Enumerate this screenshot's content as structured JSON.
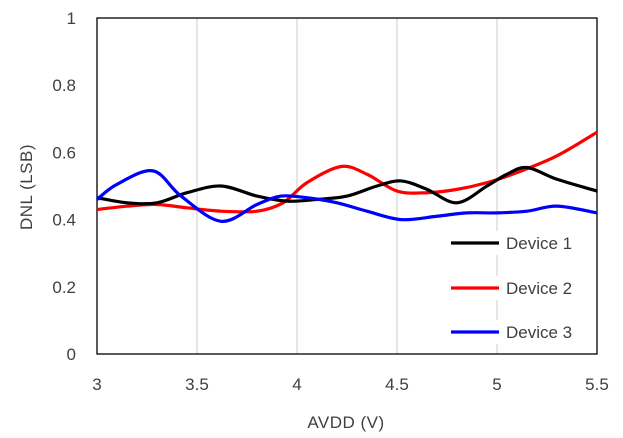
{
  "chart_data": {
    "type": "line",
    "xlabel": "AVDD (V)",
    "ylabel": "DNL (LSB)",
    "xlim": [
      3,
      5.5
    ],
    "ylim": [
      0,
      1
    ],
    "x_ticks": [
      "3",
      "3.5",
      "4",
      "4.5",
      "5",
      "5.5"
    ],
    "y_ticks": [
      "0",
      "0.2",
      "0.4",
      "0.6",
      "0.8",
      "1"
    ],
    "grid": "vertical",
    "legend_position": "bottom-right inside",
    "series": [
      {
        "name": "Device 1",
        "color": "#000000",
        "x": [
          3.0,
          3.15,
          3.3,
          3.45,
          3.62,
          3.8,
          3.95,
          4.1,
          4.25,
          4.4,
          4.52,
          4.65,
          4.8,
          4.95,
          5.05,
          5.15,
          5.3,
          5.5
        ],
        "y": [
          0.465,
          0.45,
          0.45,
          0.48,
          0.5,
          0.47,
          0.455,
          0.46,
          0.47,
          0.5,
          0.515,
          0.49,
          0.45,
          0.5,
          0.535,
          0.555,
          0.52,
          0.485
        ]
      },
      {
        "name": "Device 2",
        "color": "#ff0000",
        "x": [
          3.0,
          3.15,
          3.3,
          3.45,
          3.62,
          3.8,
          3.93,
          4.05,
          4.22,
          4.35,
          4.5,
          4.65,
          4.8,
          4.95,
          5.1,
          5.3,
          5.5
        ],
        "y": [
          0.43,
          0.44,
          0.445,
          0.435,
          0.425,
          0.425,
          0.45,
          0.51,
          0.558,
          0.535,
          0.485,
          0.48,
          0.49,
          0.51,
          0.54,
          0.59,
          0.66
        ]
      },
      {
        "name": "Device 3",
        "color": "#0000ff",
        "x": [
          3.0,
          3.1,
          3.28,
          3.42,
          3.62,
          3.8,
          3.92,
          4.05,
          4.2,
          4.35,
          4.52,
          4.7,
          4.85,
          5.0,
          5.15,
          5.3,
          5.5
        ],
        "y": [
          0.46,
          0.505,
          0.545,
          0.47,
          0.395,
          0.445,
          0.47,
          0.465,
          0.45,
          0.425,
          0.4,
          0.41,
          0.42,
          0.42,
          0.425,
          0.44,
          0.42
        ]
      }
    ]
  }
}
